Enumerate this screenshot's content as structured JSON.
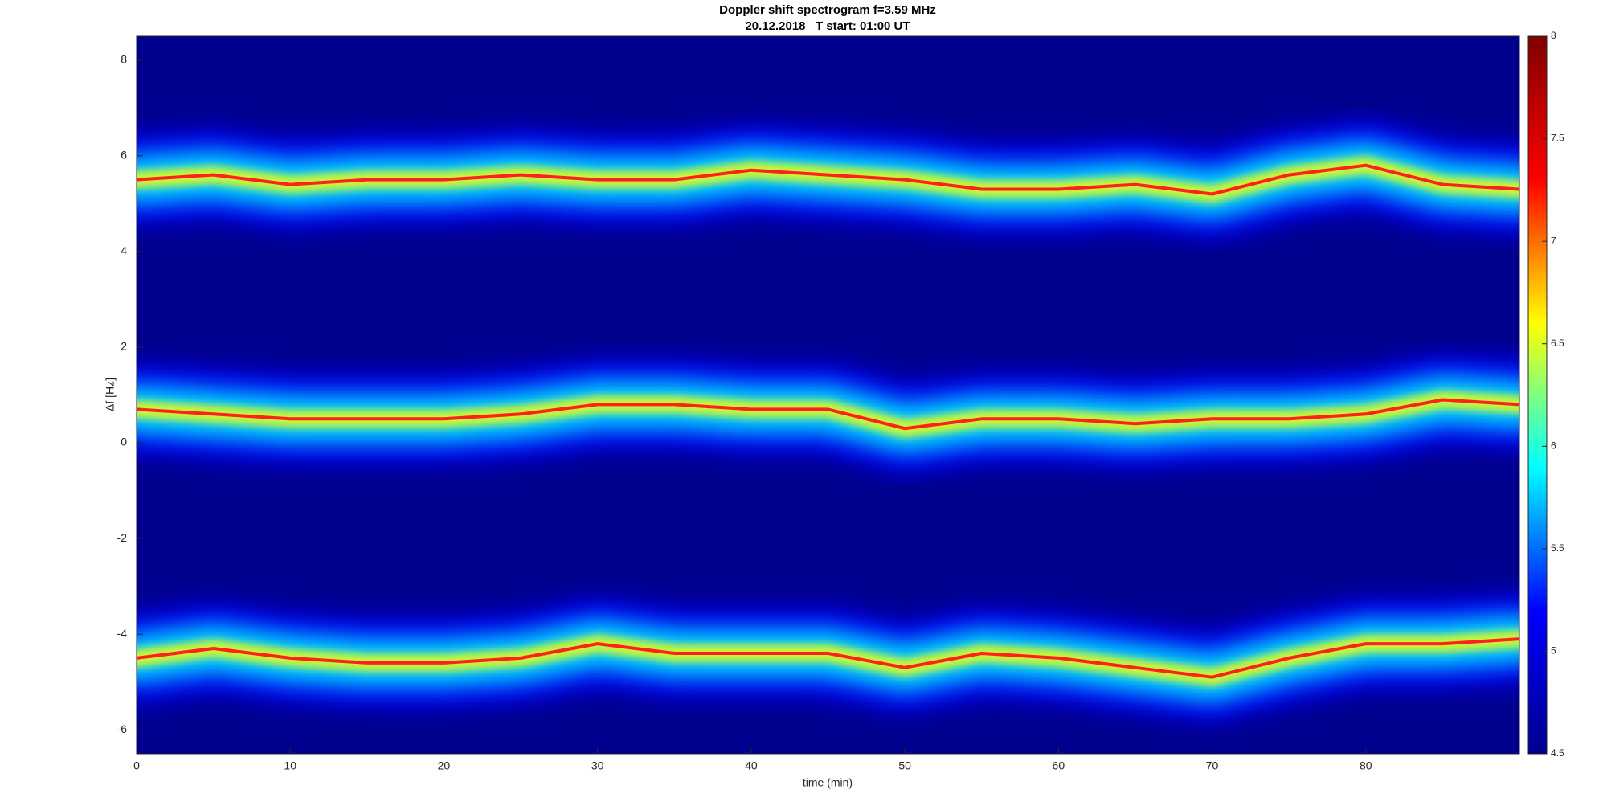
{
  "chart_data": {
    "type": "spectrogram",
    "title": "Doppler shift spectrogram f=3.59 MHz",
    "subtitle": "20.12.2018   T start: 01:00 UT",
    "x_label": "time (min)",
    "y_label": "Δf [Hz]",
    "x": [
      0,
      5,
      10,
      15,
      20,
      25,
      30,
      35,
      40,
      45,
      50,
      55,
      60,
      65,
      70,
      75,
      80,
      85,
      90
    ],
    "series": [
      {
        "color": "#ff2020",
        "values": [
          5.5,
          5.6,
          5.4,
          5.5,
          5.5,
          5.6,
          5.5,
          5.5,
          5.7,
          5.6,
          5.5,
          5.3,
          5.3,
          5.4,
          5.2,
          5.6,
          5.8,
          5.4,
          5.3
        ]
      },
      {
        "color": "#ff2020",
        "values": [
          0.7,
          0.6,
          0.5,
          0.5,
          0.5,
          0.6,
          0.8,
          0.8,
          0.7,
          0.7,
          0.3,
          0.5,
          0.5,
          0.4,
          0.5,
          0.5,
          0.6,
          0.9,
          0.8
        ]
      },
      {
        "color": "#ff2020",
        "values": [
          -4.5,
          -4.3,
          -4.5,
          -4.6,
          -4.6,
          -4.5,
          -4.2,
          -4.4,
          -4.4,
          -4.4,
          -4.7,
          -4.4,
          -4.5,
          -4.7,
          -4.9,
          -4.5,
          -4.2,
          -4.2,
          -4.1
        ]
      }
    ],
    "background_color": "#00008f",
    "xlim": [
      0,
      90
    ],
    "xticks": [
      0,
      10,
      20,
      30,
      40,
      50,
      60,
      70,
      80
    ],
    "ylim": [
      -6.5,
      8.5
    ],
    "yticks": [
      -6,
      -4,
      -2,
      0,
      2,
      4,
      6,
      8
    ],
    "clim": [
      4.5,
      8
    ],
    "cticks": [
      4.5,
      5,
      5.5,
      6,
      6.5,
      7,
      7.5,
      8
    ],
    "colormap": [
      "#00008f",
      "#0000ff",
      "#00ffff",
      "#ffff00",
      "#ff0000",
      "#800000"
    ]
  }
}
